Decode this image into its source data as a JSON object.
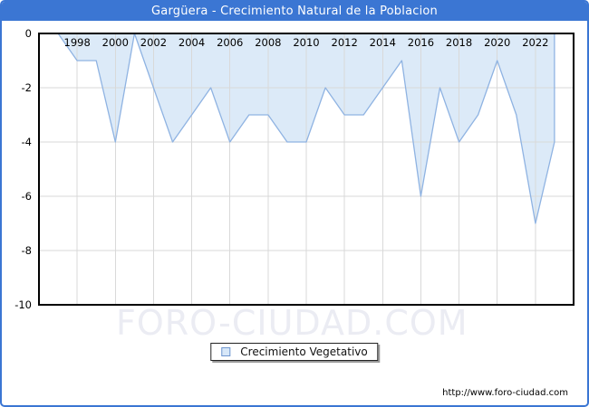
{
  "window": {
    "title": "Gargüera - Crecimiento Natural de la Poblacion"
  },
  "legend": {
    "label": "Crecimiento Vegetativo"
  },
  "watermark": "FORO-CIUDAD.COM",
  "footer": {
    "url": "http://www.foro-ciudad.com"
  },
  "colors": {
    "titlebar_blue": "#3b76d3",
    "area_fill": "#dceaf8",
    "area_stroke": "#8fb3e2",
    "gridline": "#d9d9d9",
    "axis_frame": "#000000",
    "tick_label": "#000000",
    "watermark": "#ebecf3"
  },
  "chart_data": {
    "type": "area",
    "title": "Gargüera - Crecimiento Natural de la Poblacion",
    "series": [
      {
        "name": "Crecimiento Vegetativo",
        "x": [
          1997,
          1998,
          1999,
          2000,
          2001,
          2002,
          2003,
          2004,
          2005,
          2006,
          2007,
          2008,
          2009,
          2010,
          2011,
          2012,
          2013,
          2014,
          2015,
          2016,
          2017,
          2018,
          2019,
          2020,
          2021,
          2022,
          2023
        ],
        "values": [
          0,
          -1,
          -1,
          -4,
          0,
          -2,
          -4,
          -3,
          -2,
          -4,
          -3,
          -3,
          -4,
          -4,
          -2,
          -3,
          -3,
          -2,
          -1,
          -6,
          -2,
          -4,
          -3,
          -1,
          -3,
          -7,
          -4
        ]
      }
    ],
    "xlim": [
      1996,
      2024
    ],
    "ylim": [
      -10,
      0
    ],
    "x_ticks": [
      1998,
      2000,
      2002,
      2004,
      2006,
      2008,
      2010,
      2012,
      2014,
      2016,
      2018,
      2020,
      2022
    ],
    "y_ticks": [
      0,
      -2,
      -4,
      -6,
      -8,
      -10
    ],
    "grid": true,
    "baseline": 0,
    "legend_position": "bottom",
    "xlabel": "",
    "ylabel": ""
  }
}
